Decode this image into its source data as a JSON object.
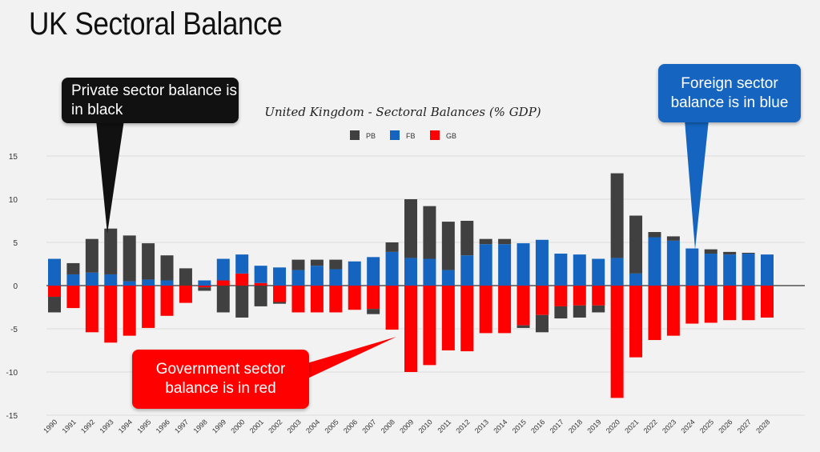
{
  "slide_title": "UK Sectoral Balance",
  "callouts": {
    "private": "Private sector balance is in black",
    "foreign": "Foreign sector balance is in blue",
    "government": "Government sector balance is in red"
  },
  "colors": {
    "PB": "#404040",
    "FB": "#1565c0",
    "GB": "#ff0000"
  },
  "chart_data": {
    "type": "bar",
    "stacked": true,
    "title": "United Kingdom - Sectoral Balances (% GDP)",
    "xlabel": "",
    "ylabel": "",
    "ylim": [
      -15,
      15
    ],
    "yticks": [
      15,
      10,
      5,
      0,
      -5,
      -10,
      -15
    ],
    "grid": true,
    "legend_position": "top",
    "categories": [
      "1990",
      "1991",
      "1992",
      "1993",
      "1994",
      "1995",
      "1996",
      "1997",
      "1998",
      "1999",
      "2000",
      "2001",
      "2002",
      "2003",
      "2004",
      "2005",
      "2006",
      "2007",
      "2008",
      "2009",
      "2010",
      "2011",
      "2012",
      "2013",
      "2014",
      "2015",
      "2016",
      "2017",
      "2018",
      "2019",
      "2020",
      "2021",
      "2022",
      "2023",
      "2024",
      "2025",
      "2026",
      "2027",
      "2028"
    ],
    "series": [
      {
        "name": "PB",
        "values": [
          -1.8,
          1.3,
          3.9,
          5.3,
          5.3,
          4.2,
          2.9,
          2.0,
          -0.4,
          -3.1,
          -3.7,
          -2.4,
          -0.2,
          1.2,
          0.7,
          1.1,
          0.0,
          -0.6,
          1.1,
          6.8,
          6.1,
          5.6,
          4.0,
          0.6,
          0.6,
          -0.3,
          -2.0,
          -1.4,
          -1.4,
          -0.8,
          9.8,
          6.7,
          0.6,
          0.5,
          0.0,
          0.5,
          0.3,
          0.1,
          0.0
        ]
      },
      {
        "name": "FB",
        "values": [
          3.1,
          1.3,
          1.5,
          1.3,
          0.5,
          0.7,
          0.6,
          0.0,
          0.6,
          2.5,
          2.2,
          2.0,
          2.1,
          1.8,
          2.3,
          1.9,
          2.8,
          3.3,
          3.9,
          3.2,
          3.1,
          1.8,
          3.5,
          4.8,
          4.8,
          4.9,
          5.3,
          3.7,
          3.6,
          3.1,
          3.2,
          1.4,
          5.6,
          5.2,
          4.3,
          3.7,
          3.6,
          3.7,
          3.6
        ]
      },
      {
        "name": "GB",
        "values": [
          -1.3,
          -2.6,
          -5.4,
          -6.6,
          -5.8,
          -4.9,
          -3.5,
          -2.0,
          -0.2,
          0.6,
          1.4,
          0.3,
          -1.9,
          -3.1,
          -3.1,
          -3.1,
          -2.8,
          -2.7,
          -5.1,
          -10.0,
          -9.2,
          -7.5,
          -7.6,
          -5.5,
          -5.5,
          -4.6,
          -3.4,
          -2.4,
          -2.3,
          -2.3,
          -13.0,
          -8.3,
          -6.3,
          -5.8,
          -4.4,
          -4.3,
          -4.0,
          -4.0,
          -3.7
        ]
      }
    ]
  }
}
